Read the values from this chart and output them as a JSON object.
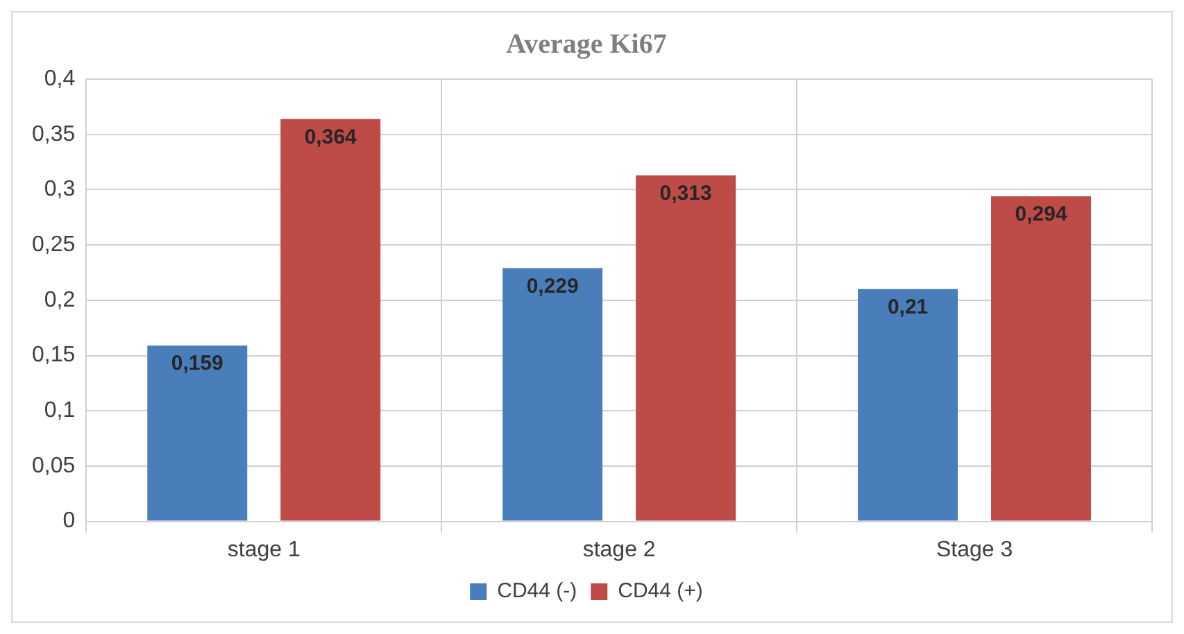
{
  "chart_data": {
    "type": "bar",
    "title": "Average Ki67",
    "categories": [
      "stage 1",
      "stage 2",
      "Stage 3"
    ],
    "series": [
      {
        "name": "CD44 (-)",
        "color": "#4a7ebb",
        "values": [
          0.159,
          0.229,
          0.21
        ],
        "value_labels": [
          "0,159",
          "0,229",
          "0,21"
        ]
      },
      {
        "name": "CD44 (+)",
        "color": "#be4b48",
        "values": [
          0.364,
          0.313,
          0.294
        ],
        "value_labels": [
          "0,364",
          "0,313",
          "0,294"
        ]
      }
    ],
    "ylim": [
      0,
      0.4
    ],
    "yticks": [
      {
        "value": 0,
        "label": "0"
      },
      {
        "value": 0.05,
        "label": "0,05"
      },
      {
        "value": 0.1,
        "label": "0,1"
      },
      {
        "value": 0.15,
        "label": "0,15"
      },
      {
        "value": 0.2,
        "label": "0,2"
      },
      {
        "value": 0.25,
        "label": "0,25"
      },
      {
        "value": 0.3,
        "label": "0,3"
      },
      {
        "value": 0.35,
        "label": "0,35"
      },
      {
        "value": 0.4,
        "label": "0,4"
      }
    ],
    "grid": true,
    "legend": "bottom"
  }
}
